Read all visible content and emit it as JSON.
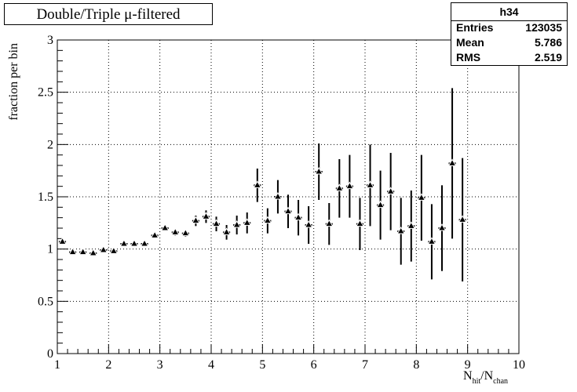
{
  "legend_title": "Double/Triple μ-filtered",
  "stats": {
    "name": "h34",
    "rows": [
      {
        "key": "Entries",
        "value": "123035"
      },
      {
        "key": "Mean",
        "value": "5.786"
      },
      {
        "key": "RMS",
        "value": "2.519"
      }
    ]
  },
  "chart_data": {
    "type": "scatter",
    "title": "Double/Triple μ-filtered",
    "ylabel": "fraction per bin",
    "xlabel_main": "N",
    "xlabel_sub1": "hit",
    "xlabel_sep": "/N",
    "xlabel_sub2": "chan",
    "xlim": [
      1,
      10
    ],
    "ylim": [
      0,
      3
    ],
    "grid": true,
    "marker": "triangle",
    "xticks": [
      "1",
      "2",
      "3",
      "4",
      "5",
      "6",
      "7",
      "8",
      "9",
      "10"
    ],
    "yticks": [
      "0",
      "0.5",
      "1",
      "1.5",
      "2",
      "2.5",
      "3"
    ],
    "points": [
      {
        "x": 1.1,
        "y": 1.07,
        "err": 0.01
      },
      {
        "x": 1.3,
        "y": 0.97,
        "err": 0.01
      },
      {
        "x": 1.5,
        "y": 0.97,
        "err": 0.01
      },
      {
        "x": 1.7,
        "y": 0.96,
        "err": 0.01
      },
      {
        "x": 1.9,
        "y": 0.99,
        "err": 0.01
      },
      {
        "x": 2.1,
        "y": 0.98,
        "err": 0.01
      },
      {
        "x": 2.3,
        "y": 1.05,
        "err": 0.01
      },
      {
        "x": 2.5,
        "y": 1.05,
        "err": 0.01
      },
      {
        "x": 2.7,
        "y": 1.05,
        "err": 0.01
      },
      {
        "x": 2.9,
        "y": 1.13,
        "err": 0.02
      },
      {
        "x": 3.1,
        "y": 1.2,
        "err": 0.02
      },
      {
        "x": 3.3,
        "y": 1.16,
        "err": 0.03
      },
      {
        "x": 3.5,
        "y": 1.15,
        "err": 0.03
      },
      {
        "x": 3.7,
        "y": 1.27,
        "err": 0.05
      },
      {
        "x": 3.9,
        "y": 1.31,
        "err": 0.06
      },
      {
        "x": 4.1,
        "y": 1.24,
        "err": 0.07
      },
      {
        "x": 4.3,
        "y": 1.16,
        "err": 0.07
      },
      {
        "x": 4.5,
        "y": 1.23,
        "err": 0.09
      },
      {
        "x": 4.7,
        "y": 1.25,
        "err": 0.1
      },
      {
        "x": 4.9,
        "y": 1.61,
        "err": 0.16
      },
      {
        "x": 5.1,
        "y": 1.27,
        "err": 0.12
      },
      {
        "x": 5.3,
        "y": 1.5,
        "err": 0.16
      },
      {
        "x": 5.5,
        "y": 1.36,
        "err": 0.16
      },
      {
        "x": 5.7,
        "y": 1.3,
        "err": 0.17
      },
      {
        "x": 5.9,
        "y": 1.23,
        "err": 0.18
      },
      {
        "x": 6.1,
        "y": 1.74,
        "err": 0.27
      },
      {
        "x": 6.3,
        "y": 1.24,
        "err": 0.2
      },
      {
        "x": 6.5,
        "y": 1.58,
        "err": 0.28
      },
      {
        "x": 6.7,
        "y": 1.6,
        "err": 0.3
      },
      {
        "x": 6.9,
        "y": 1.24,
        "err": 0.25
      },
      {
        "x": 7.1,
        "y": 1.61,
        "err": 0.39
      },
      {
        "x": 7.3,
        "y": 1.42,
        "err": 0.33
      },
      {
        "x": 7.5,
        "y": 1.55,
        "err": 0.37
      },
      {
        "x": 7.7,
        "y": 1.17,
        "err": 0.32
      },
      {
        "x": 7.9,
        "y": 1.22,
        "err": 0.34
      },
      {
        "x": 8.1,
        "y": 1.49,
        "err": 0.41
      },
      {
        "x": 8.3,
        "y": 1.07,
        "err": 0.36
      },
      {
        "x": 8.5,
        "y": 1.2,
        "err": 0.41
      },
      {
        "x": 8.7,
        "y": 1.82,
        "err": 0.72
      },
      {
        "x": 8.9,
        "y": 1.28,
        "err": 0.59
      }
    ]
  }
}
